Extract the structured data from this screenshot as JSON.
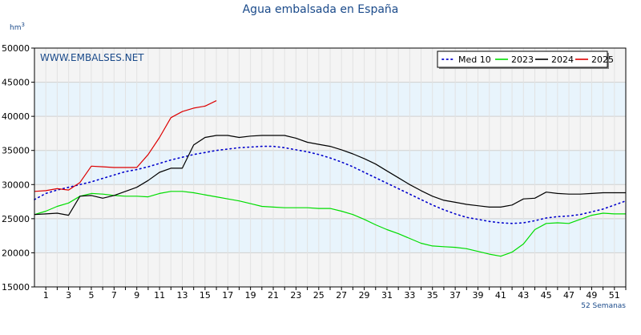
{
  "chart_data": {
    "type": "line",
    "title": "Agua embalsada en España",
    "ylabel_main": "hm",
    "ylabel_sup": "3",
    "watermark": "WWW.EMBALSES.NET",
    "xlabel": "52 Semanas",
    "ylim": [
      15000,
      50000
    ],
    "yticks": [
      15000,
      20000,
      25000,
      30000,
      35000,
      40000,
      45000,
      50000
    ],
    "xlim": [
      0,
      52
    ],
    "xticks": [
      1,
      3,
      5,
      7,
      9,
      11,
      13,
      15,
      17,
      19,
      21,
      23,
      25,
      27,
      29,
      31,
      33,
      35,
      37,
      39,
      41,
      43,
      45,
      47,
      49,
      51
    ],
    "grid": true,
    "legend_position": "top-right",
    "band_colors": [
      "#f4f4f4",
      "#e8f4fc"
    ],
    "series": [
      {
        "name": "Med 10",
        "color": "#0000cc",
        "style": "dotted",
        "x": [
          0,
          1,
          2,
          3,
          4,
          5,
          6,
          7,
          8,
          9,
          10,
          11,
          12,
          13,
          14,
          15,
          16,
          17,
          18,
          19,
          20,
          21,
          22,
          23,
          24,
          25,
          26,
          27,
          28,
          29,
          30,
          31,
          32,
          33,
          34,
          35,
          36,
          37,
          38,
          39,
          40,
          41,
          42,
          43,
          44,
          45,
          46,
          47,
          48,
          49,
          50,
          51,
          52
        ],
        "y": [
          27800,
          28700,
          29200,
          29600,
          30000,
          30400,
          30900,
          31400,
          31900,
          32200,
          32600,
          33100,
          33600,
          34000,
          34400,
          34700,
          35000,
          35200,
          35400,
          35500,
          35600,
          35600,
          35400,
          35100,
          34800,
          34400,
          33900,
          33300,
          32600,
          31800,
          31000,
          30200,
          29400,
          28600,
          27800,
          27000,
          26300,
          25700,
          25200,
          24900,
          24600,
          24400,
          24300,
          24400,
          24700,
          25100,
          25300,
          25400,
          25600,
          26000,
          26400,
          27000,
          27600
        ]
      },
      {
        "name": "2023",
        "color": "#00dd00",
        "style": "solid",
        "x": [
          0,
          1,
          2,
          3,
          4,
          5,
          6,
          7,
          8,
          9,
          10,
          11,
          12,
          13,
          14,
          15,
          16,
          17,
          18,
          19,
          20,
          21,
          22,
          23,
          24,
          25,
          26,
          27,
          28,
          29,
          30,
          31,
          32,
          33,
          34,
          35,
          36,
          37,
          38,
          39,
          40,
          41,
          42,
          43,
          44,
          45,
          46,
          47,
          48,
          49,
          50,
          51,
          52
        ],
        "y": [
          25600,
          26100,
          26800,
          27300,
          28300,
          28700,
          28600,
          28400,
          28300,
          28300,
          28200,
          28700,
          29000,
          29000,
          28800,
          28500,
          28200,
          27900,
          27600,
          27200,
          26800,
          26700,
          26600,
          26600,
          26600,
          26500,
          26500,
          26100,
          25600,
          24900,
          24100,
          23400,
          22800,
          22100,
          21400,
          21000,
          20900,
          20800,
          20600,
          20200,
          19800,
          19500,
          20100,
          21300,
          23400,
          24300,
          24400,
          24300,
          24900,
          25500,
          25800,
          25700,
          25700
        ]
      },
      {
        "name": "2024",
        "color": "#000000",
        "style": "solid",
        "x": [
          0,
          1,
          2,
          3,
          4,
          5,
          6,
          7,
          8,
          9,
          10,
          11,
          12,
          13,
          14,
          15,
          16,
          17,
          18,
          19,
          20,
          21,
          22,
          23,
          24,
          25,
          26,
          27,
          28,
          29,
          30,
          31,
          32,
          33,
          34,
          35,
          36,
          37,
          38,
          39,
          40,
          41,
          42,
          43,
          44,
          45,
          46,
          47,
          48,
          49,
          50,
          51,
          52
        ],
        "y": [
          25600,
          25700,
          25800,
          25500,
          28300,
          28400,
          28000,
          28400,
          29000,
          29600,
          30600,
          31800,
          32400,
          32400,
          35800,
          36900,
          37200,
          37200,
          36900,
          37100,
          37200,
          37200,
          37200,
          36800,
          36200,
          35900,
          35600,
          35100,
          34500,
          33800,
          33000,
          32000,
          31000,
          30000,
          29100,
          28300,
          27700,
          27400,
          27100,
          26900,
          26700,
          26700,
          27000,
          27900,
          28000,
          28900,
          28700,
          28600,
          28600,
          28700,
          28800,
          28800,
          28800
        ]
      },
      {
        "name": "2025",
        "color": "#dd0000",
        "style": "solid",
        "x": [
          0,
          1,
          2,
          3,
          4,
          5,
          6,
          7,
          8,
          9,
          10,
          11,
          12,
          13,
          14,
          15,
          16
        ],
        "y": [
          29000,
          29100,
          29400,
          29200,
          30300,
          32700,
          32600,
          32500,
          32500,
          32500,
          34400,
          36900,
          39800,
          40700,
          41200,
          41500,
          42300
        ]
      }
    ]
  }
}
